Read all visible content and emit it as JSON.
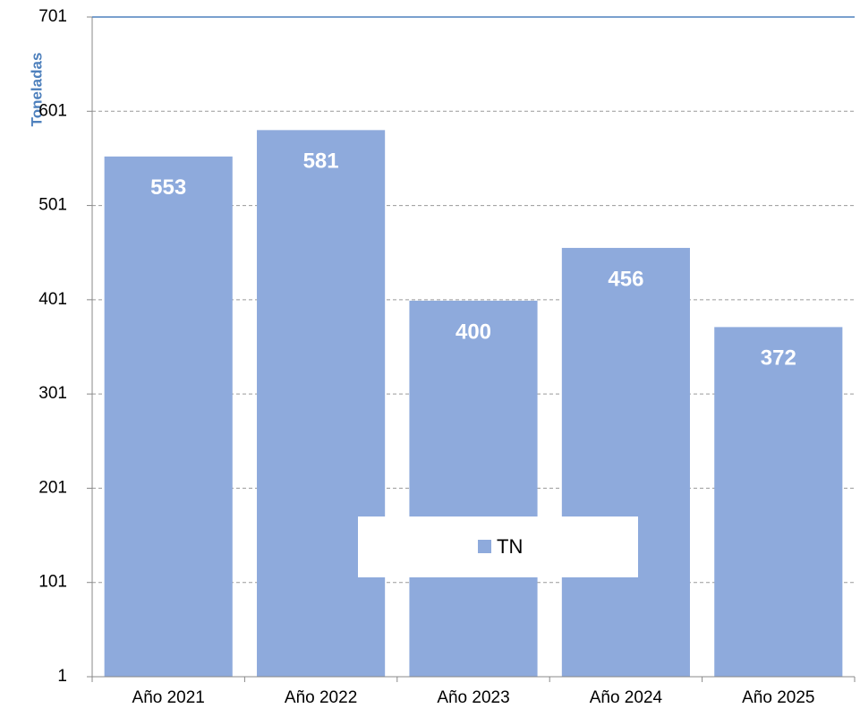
{
  "chart_data": {
    "type": "bar",
    "y_label": "Toneladas",
    "categories": [
      "Año 2021",
      "Año 2022",
      "Año 2023",
      "Año 2024",
      "Año 2025"
    ],
    "series": [
      {
        "name": "TN",
        "color": "#8eaadc",
        "values": [
          553,
          581,
          400,
          456,
          372
        ]
      }
    ],
    "ylim": [
      1,
      701
    ],
    "yticks": [
      1,
      101,
      201,
      301,
      401,
      501,
      601,
      701
    ],
    "grid": true,
    "legend": "bottom-center",
    "data_labels": true
  }
}
